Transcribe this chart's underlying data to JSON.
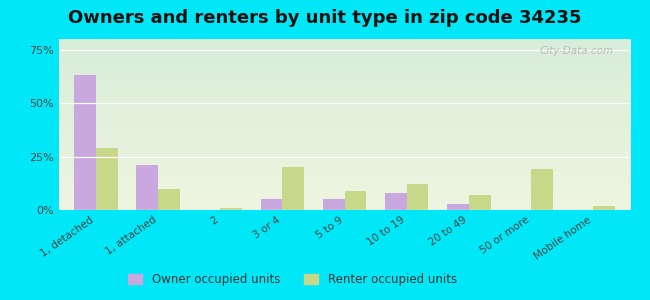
{
  "title": "Owners and renters by unit type in zip code 34235",
  "categories": [
    "1, detached",
    "1, attached",
    "2",
    "3 or 4",
    "5 to 9",
    "10 to 19",
    "20 to 49",
    "50 or more",
    "Mobile home"
  ],
  "owner_values": [
    63,
    21,
    0,
    5,
    5,
    8,
    3,
    0,
    0
  ],
  "renter_values": [
    29,
    10,
    1,
    20,
    9,
    12,
    7,
    19,
    2
  ],
  "owner_color": "#c9a8e0",
  "renter_color": "#c8d88a",
  "background_fig": "#00e8f8",
  "ylim": [
    0,
    80
  ],
  "yticks": [
    0,
    25,
    50,
    75
  ],
  "ytick_labels": [
    "0%",
    "25%",
    "50%",
    "75%"
  ],
  "title_fontsize": 13,
  "legend_owner": "Owner occupied units",
  "legend_renter": "Renter occupied units",
  "watermark": "City-Data.com",
  "grad_top": "#d8edd8",
  "grad_bottom": "#eef5e0"
}
